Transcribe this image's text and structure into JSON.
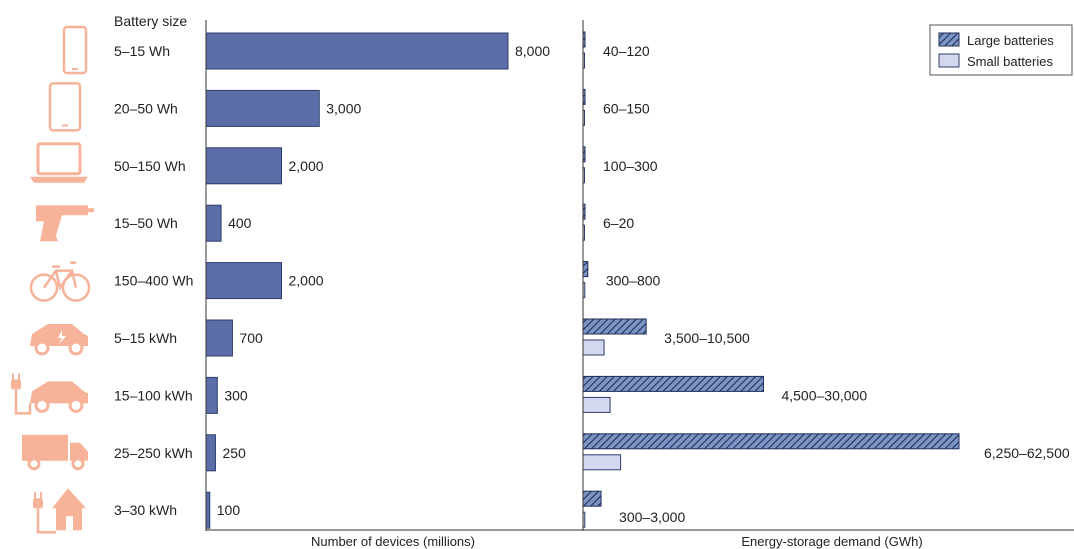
{
  "chart_data": {
    "type": "bar",
    "colors": {
      "devices_bar": "#5b6ea8",
      "devices_bar_edge": "#2f3c6b",
      "large_batteries": "#7d95c4",
      "large_batteries_stripe": "#1f2e5a",
      "small_batteries": "#d3d8ee",
      "icon": "#f7b39a",
      "axis": "#333333"
    },
    "left_panel": {
      "column_header": "Battery size",
      "xlabel": "Number of devices (millions)",
      "xlim": [
        0,
        10500
      ],
      "categories": [
        {
          "icon": "smartphone-icon",
          "battery_size": "5–15 Wh",
          "devices": 8000,
          "devices_label": "8,000"
        },
        {
          "icon": "tablet-icon",
          "battery_size": "20–50 Wh",
          "devices": 3000,
          "devices_label": "3,000"
        },
        {
          "icon": "laptop-icon",
          "battery_size": "50–150 Wh",
          "devices": 2000,
          "devices_label": "2,000"
        },
        {
          "icon": "power-drill-icon",
          "battery_size": "15–50 Wh",
          "devices": 400,
          "devices_label": "400"
        },
        {
          "icon": "e-bike-icon",
          "battery_size": "150–400 Wh",
          "devices": 2000,
          "devices_label": "2,000"
        },
        {
          "icon": "hybrid-car-icon",
          "battery_size": "5–15 kWh",
          "devices": 700,
          "devices_label": "700"
        },
        {
          "icon": "plug-in-car-icon",
          "battery_size": "15–100 kWh",
          "devices": 300,
          "devices_label": "300"
        },
        {
          "icon": "truck-icon",
          "battery_size": "25–250 kWh",
          "devices": 250,
          "devices_label": "250"
        },
        {
          "icon": "home-storage-icon",
          "battery_size": "3–30 kWh",
          "devices": 100,
          "devices_label": "100"
        }
      ]
    },
    "right_panel": {
      "xlabel": "Energy-storage demand (GWh)",
      "xlim": [
        0,
        66000
      ],
      "legend": {
        "position": "top-right",
        "entries": [
          "Large batteries",
          "Small batteries"
        ]
      },
      "series": [
        {
          "name": "Large batteries",
          "values": [
            120,
            150,
            300,
            20,
            800,
            10500,
            30000,
            62500,
            3000
          ]
        },
        {
          "name": "Small batteries",
          "values": [
            40,
            60,
            100,
            6,
            300,
            3500,
            4500,
            6250,
            300
          ]
        }
      ],
      "range_labels": [
        "40–120",
        "60–150",
        "100–300",
        "6–20",
        "300–800",
        "3,500–10,500",
        "4,500–30,000",
        "6,250–62,500",
        "300–3,000"
      ]
    }
  }
}
